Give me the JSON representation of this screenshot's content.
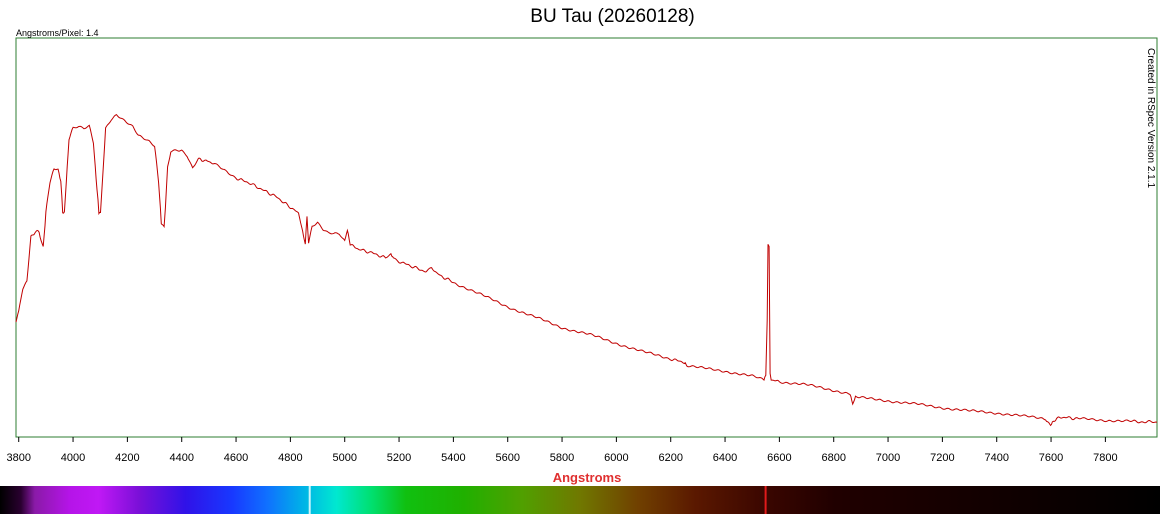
{
  "chart_data": {
    "type": "line",
    "title": "BU Tau (20260128)",
    "subtitle": "Angstroms/Pixel: 1.4",
    "side_note": "Created in RSpec Version 2.1.1",
    "xlabel": "Angstroms",
    "ylabel": "",
    "xlim": [
      3790,
      7990
    ],
    "ylim": [
      0,
      1
    ],
    "x_ticks": [
      "3800",
      "4000",
      "4200",
      "4400",
      "4600",
      "4800",
      "5000",
      "5200",
      "5400",
      "5600",
      "5800",
      "6000",
      "6200",
      "6400",
      "6600",
      "6800",
      "7000",
      "7200",
      "7400",
      "7600",
      "7800"
    ],
    "grid": false,
    "colors": {
      "line": "#c00000",
      "frame": "#2e7d32",
      "xlabel": "#e03030"
    },
    "series": [
      {
        "x": [
          3790,
          3800,
          3815,
          3830,
          3845,
          3860,
          3875,
          3890,
          3900,
          3915,
          3930,
          3945,
          3955,
          3962,
          3968,
          3975,
          3985,
          4000,
          4020,
          4040,
          4060,
          4075,
          4085,
          4095,
          4101,
          4108,
          4120,
          4140,
          4160,
          4180,
          4200,
          4220,
          4240,
          4260,
          4280,
          4300,
          4315,
          4325,
          4335,
          4340,
          4348,
          4360,
          4380,
          4400,
          4420,
          4440,
          4460,
          4475,
          4490,
          4520,
          4560,
          4600,
          4650,
          4700,
          4750,
          4800,
          4830,
          4845,
          4855,
          4861,
          4867,
          4880,
          4900,
          4920,
          4940,
          4960,
          4980,
          5000,
          5010,
          5020,
          5050,
          5100,
          5150,
          5170,
          5180,
          5200,
          5250,
          5300,
          5320,
          5350,
          5400,
          5500,
          5600,
          5700,
          5800,
          5900,
          6000,
          6100,
          6200,
          6250,
          6260,
          6300,
          6400,
          6500,
          6540,
          6550,
          6555,
          6558,
          6562,
          6566,
          6570,
          6600,
          6700,
          6800,
          6860,
          6870,
          6880,
          6900,
          7000,
          7100,
          7200,
          7300,
          7400,
          7500,
          7580,
          7595,
          7605,
          7620,
          7650,
          7700,
          7800,
          7900,
          7990
        ],
        "y": [
          0.295,
          0.33,
          0.39,
          0.415,
          0.54,
          0.555,
          0.555,
          0.51,
          0.61,
          0.7,
          0.735,
          0.735,
          0.7,
          0.61,
          0.61,
          0.7,
          0.82,
          0.855,
          0.86,
          0.855,
          0.86,
          0.81,
          0.71,
          0.61,
          0.61,
          0.7,
          0.85,
          0.875,
          0.89,
          0.88,
          0.87,
          0.86,
          0.835,
          0.825,
          0.815,
          0.8,
          0.7,
          0.58,
          0.57,
          0.62,
          0.74,
          0.785,
          0.79,
          0.79,
          0.775,
          0.74,
          0.765,
          0.76,
          0.76,
          0.75,
          0.73,
          0.71,
          0.695,
          0.675,
          0.655,
          0.625,
          0.61,
          0.555,
          0.52,
          0.6,
          0.52,
          0.57,
          0.58,
          0.56,
          0.55,
          0.55,
          0.55,
          0.53,
          0.56,
          0.52,
          0.505,
          0.495,
          0.48,
          0.49,
          0.48,
          0.47,
          0.455,
          0.44,
          0.45,
          0.43,
          0.41,
          0.375,
          0.34,
          0.31,
          0.28,
          0.26,
          0.235,
          0.21,
          0.19,
          0.18,
          0.17,
          0.165,
          0.155,
          0.14,
          0.13,
          0.14,
          0.3,
          0.52,
          0.515,
          0.15,
          0.13,
          0.125,
          0.115,
          0.1,
          0.09,
          0.06,
          0.08,
          0.078,
          0.07,
          0.06,
          0.05,
          0.04,
          0.035,
          0.025,
          0.018,
          0.0,
          0.005,
          0.02,
          0.022,
          0.018,
          0.014,
          0.01,
          0.008
        ]
      }
    ],
    "spectrum_stops": [
      {
        "offset": 0.0,
        "color": "#000000"
      },
      {
        "offset": 0.018,
        "color": "#2a0030"
      },
      {
        "offset": 0.03,
        "color": "#8a1aa8"
      },
      {
        "offset": 0.06,
        "color": "#b514e8"
      },
      {
        "offset": 0.085,
        "color": "#c018f5"
      },
      {
        "offset": 0.12,
        "color": "#7a10d8"
      },
      {
        "offset": 0.16,
        "color": "#3012e8"
      },
      {
        "offset": 0.2,
        "color": "#1838ff"
      },
      {
        "offset": 0.23,
        "color": "#1070ff"
      },
      {
        "offset": 0.26,
        "color": "#00b0e8"
      },
      {
        "offset": 0.29,
        "color": "#00e8d0"
      },
      {
        "offset": 0.32,
        "color": "#00e070"
      },
      {
        "offset": 0.35,
        "color": "#10c010"
      },
      {
        "offset": 0.4,
        "color": "#20b000"
      },
      {
        "offset": 0.45,
        "color": "#50a000"
      },
      {
        "offset": 0.5,
        "color": "#707800"
      },
      {
        "offset": 0.55,
        "color": "#704000"
      },
      {
        "offset": 0.6,
        "color": "#5a1800"
      },
      {
        "offset": 0.66,
        "color": "#3a0600"
      },
      {
        "offset": 0.72,
        "color": "#200000"
      },
      {
        "offset": 0.85,
        "color": "#120000"
      },
      {
        "offset": 1.0,
        "color": "#000000"
      }
    ],
    "spectrum_bright_lines": [
      {
        "position": 0.66,
        "color": "#ff2020"
      },
      {
        "position": 0.267,
        "color": "#f0ffff"
      }
    ]
  }
}
